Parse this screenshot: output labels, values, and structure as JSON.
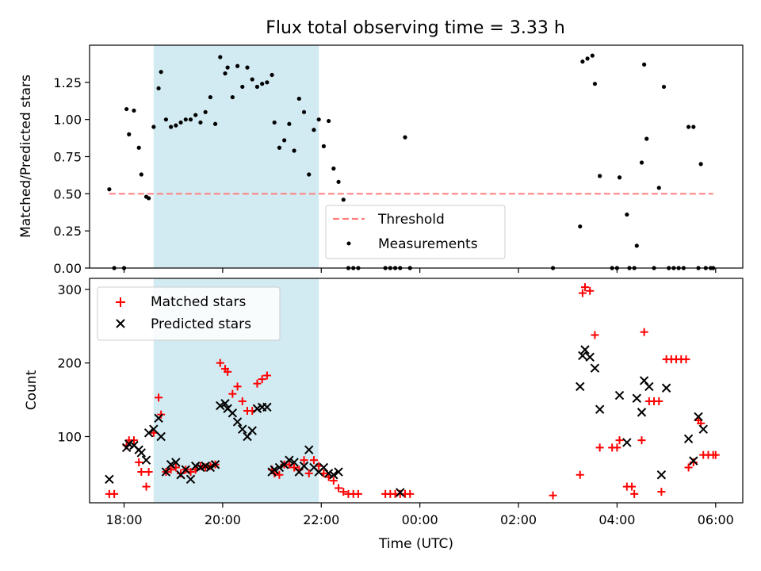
{
  "title": "Flux total observing time = 3.33 h",
  "chart_data": [
    {
      "type": "scatter",
      "ylabel": "Matched/Predicted stars",
      "xlim": [
        17.3,
        30.55
      ],
      "ylim": [
        0,
        1.5
      ],
      "yticks": [
        0,
        0.25,
        0.5,
        0.75,
        1.0,
        1.25
      ],
      "ytick_labels": [
        "0.00",
        "0.25",
        "0.50",
        "0.75",
        "1.00",
        "1.25"
      ],
      "highlight_span": [
        18.6,
        21.95
      ],
      "threshold": {
        "label": "Threshold",
        "value": 0.5,
        "x_start": 17.7,
        "x_end": 29.95,
        "color": "#ff7f7f"
      },
      "legend": [
        "Threshold",
        "Measurements"
      ],
      "legend_position": "lower-center",
      "series": [
        {
          "name": "Measurements",
          "color": "#000000",
          "points": [
            [
              17.7,
              0.53
            ],
            [
              17.8,
              0
            ],
            [
              18.0,
              0
            ],
            [
              18.05,
              1.07
            ],
            [
              18.1,
              0.9
            ],
            [
              18.2,
              1.06
            ],
            [
              18.3,
              0.81
            ],
            [
              18.35,
              0.63
            ],
            [
              18.45,
              0.48
            ],
            [
              18.5,
              0.47
            ],
            [
              18.6,
              0.95
            ],
            [
              18.7,
              1.21
            ],
            [
              18.75,
              1.32
            ],
            [
              18.85,
              1.0
            ],
            [
              18.95,
              0.95
            ],
            [
              19.05,
              0.96
            ],
            [
              19.15,
              0.98
            ],
            [
              19.25,
              1.0
            ],
            [
              19.35,
              1.0
            ],
            [
              19.45,
              1.03
            ],
            [
              19.55,
              0.98
            ],
            [
              19.65,
              1.05
            ],
            [
              19.75,
              1.15
            ],
            [
              19.85,
              0.97
            ],
            [
              19.95,
              1.42
            ],
            [
              20.05,
              1.31
            ],
            [
              20.1,
              1.35
            ],
            [
              20.2,
              1.15
            ],
            [
              20.3,
              1.36
            ],
            [
              20.4,
              1.22
            ],
            [
              20.5,
              1.35
            ],
            [
              20.6,
              1.27
            ],
            [
              20.7,
              1.22
            ],
            [
              20.8,
              1.24
            ],
            [
              20.9,
              1.25
            ],
            [
              21.0,
              1.3
            ],
            [
              21.05,
              0.98
            ],
            [
              21.15,
              0.81
            ],
            [
              21.25,
              0.86
            ],
            [
              21.35,
              0.97
            ],
            [
              21.45,
              0.79
            ],
            [
              21.55,
              1.14
            ],
            [
              21.65,
              1.05
            ],
            [
              21.75,
              0.63
            ],
            [
              21.85,
              0.93
            ],
            [
              21.95,
              1.0
            ],
            [
              22.05,
              0.82
            ],
            [
              22.15,
              0.99
            ],
            [
              22.25,
              0.67
            ],
            [
              22.35,
              0.58
            ],
            [
              22.45,
              0.46
            ],
            [
              22.55,
              0
            ],
            [
              22.65,
              0
            ],
            [
              22.75,
              0
            ],
            [
              23.3,
              0
            ],
            [
              23.4,
              0
            ],
            [
              23.5,
              0
            ],
            [
              23.6,
              0
            ],
            [
              23.7,
              0.88
            ],
            [
              23.8,
              0
            ],
            [
              26.7,
              0
            ],
            [
              27.25,
              0.28
            ],
            [
              27.3,
              1.39
            ],
            [
              27.4,
              1.41
            ],
            [
              27.5,
              1.43
            ],
            [
              27.55,
              1.24
            ],
            [
              27.65,
              0.62
            ],
            [
              27.9,
              0
            ],
            [
              28.0,
              0
            ],
            [
              28.05,
              0.61
            ],
            [
              28.2,
              0.36
            ],
            [
              28.25,
              0
            ],
            [
              28.35,
              0
            ],
            [
              28.4,
              0.15
            ],
            [
              28.5,
              0.71
            ],
            [
              28.55,
              1.37
            ],
            [
              28.6,
              0.87
            ],
            [
              28.75,
              0
            ],
            [
              28.85,
              0.54
            ],
            [
              28.95,
              1.22
            ],
            [
              29.05,
              0
            ],
            [
              29.15,
              0
            ],
            [
              29.25,
              0
            ],
            [
              29.35,
              0
            ],
            [
              29.45,
              0.95
            ],
            [
              29.55,
              0.95
            ],
            [
              29.65,
              0
            ],
            [
              29.7,
              0.7
            ],
            [
              29.8,
              0
            ],
            [
              29.9,
              0
            ],
            [
              29.95,
              0
            ]
          ]
        }
      ]
    },
    {
      "type": "scatter",
      "ylabel": "Count",
      "xlabel": "Time (UTC)",
      "xlim": [
        17.3,
        30.55
      ],
      "ylim": [
        10,
        315
      ],
      "yticks": [
        100,
        200,
        300
      ],
      "ytick_labels": [
        "100",
        "200",
        "300"
      ],
      "xticks": [
        18,
        20,
        22,
        24,
        26,
        28,
        30
      ],
      "xtick_labels": [
        "18:00",
        "20:00",
        "22:00",
        "00:00",
        "02:00",
        "04:00",
        "06:00"
      ],
      "highlight_span": [
        18.6,
        21.95
      ],
      "legend": [
        "Matched stars",
        "Predicted stars"
      ],
      "legend_position": "top-left",
      "series": [
        {
          "name": "Matched stars",
          "marker": "+",
          "color": "#ff0000",
          "points": [
            [
              17.7,
              22
            ],
            [
              17.8,
              22
            ],
            [
              18.05,
              88
            ],
            [
              18.1,
              95
            ],
            [
              18.2,
              95
            ],
            [
              18.3,
              65
            ],
            [
              18.35,
              52
            ],
            [
              18.45,
              32
            ],
            [
              18.5,
              52
            ],
            [
              18.6,
              105
            ],
            [
              18.7,
              153
            ],
            [
              18.75,
              130
            ],
            [
              18.85,
              52
            ],
            [
              18.95,
              55
            ],
            [
              19.05,
              58
            ],
            [
              19.15,
              50
            ],
            [
              19.25,
              55
            ],
            [
              19.35,
              52
            ],
            [
              19.45,
              55
            ],
            [
              19.55,
              60
            ],
            [
              19.65,
              58
            ],
            [
              19.75,
              60
            ],
            [
              19.85,
              62
            ],
            [
              19.95,
              200
            ],
            [
              20.05,
              192
            ],
            [
              20.1,
              188
            ],
            [
              20.2,
              158
            ],
            [
              20.3,
              168
            ],
            [
              20.4,
              148
            ],
            [
              20.5,
              135
            ],
            [
              20.6,
              135
            ],
            [
              20.7,
              172
            ],
            [
              20.8,
              178
            ],
            [
              20.9,
              183
            ],
            [
              21.0,
              55
            ],
            [
              21.05,
              50
            ],
            [
              21.15,
              48
            ],
            [
              21.25,
              62
            ],
            [
              21.35,
              62
            ],
            [
              21.45,
              58
            ],
            [
              21.55,
              55
            ],
            [
              21.65,
              68
            ],
            [
              21.75,
              50
            ],
            [
              21.85,
              68
            ],
            [
              21.95,
              60
            ],
            [
              22.05,
              50
            ],
            [
              22.15,
              45
            ],
            [
              22.25,
              40
            ],
            [
              22.35,
              30
            ],
            [
              22.45,
              25
            ],
            [
              22.55,
              22
            ],
            [
              22.65,
              22
            ],
            [
              22.75,
              22
            ],
            [
              23.3,
              22
            ],
            [
              23.4,
              22
            ],
            [
              23.5,
              22
            ],
            [
              23.6,
              22
            ],
            [
              23.7,
              22
            ],
            [
              23.8,
              22
            ],
            [
              26.7,
              20
            ],
            [
              27.25,
              48
            ],
            [
              27.3,
              295
            ],
            [
              27.35,
              303
            ],
            [
              27.45,
              298
            ],
            [
              27.55,
              238
            ],
            [
              27.65,
              85
            ],
            [
              27.9,
              85
            ],
            [
              28.0,
              85
            ],
            [
              28.05,
              95
            ],
            [
              28.2,
              32
            ],
            [
              28.3,
              32
            ],
            [
              28.35,
              22
            ],
            [
              28.5,
              95
            ],
            [
              28.55,
              242
            ],
            [
              28.65,
              148
            ],
            [
              28.75,
              148
            ],
            [
              28.85,
              148
            ],
            [
              28.9,
              25
            ],
            [
              29.0,
              205
            ],
            [
              29.1,
              205
            ],
            [
              29.2,
              205
            ],
            [
              29.3,
              205
            ],
            [
              29.4,
              205
            ],
            [
              29.45,
              58
            ],
            [
              29.55,
              65
            ],
            [
              29.65,
              122
            ],
            [
              29.7,
              118
            ],
            [
              29.75,
              75
            ],
            [
              29.85,
              75
            ],
            [
              29.95,
              75
            ],
            [
              30.0,
              75
            ]
          ]
        },
        {
          "name": "Predicted stars",
          "marker": "x",
          "color": "#000000",
          "points": [
            [
              17.7,
              42
            ],
            [
              18.05,
              85
            ],
            [
              18.1,
              90
            ],
            [
              18.2,
              88
            ],
            [
              18.3,
              82
            ],
            [
              18.35,
              78
            ],
            [
              18.45,
              68
            ],
            [
              18.5,
              105
            ],
            [
              18.6,
              110
            ],
            [
              18.7,
              125
            ],
            [
              18.75,
              100
            ],
            [
              18.85,
              52
            ],
            [
              18.95,
              62
            ],
            [
              19.05,
              65
            ],
            [
              19.15,
              48
            ],
            [
              19.25,
              55
            ],
            [
              19.35,
              42
            ],
            [
              19.45,
              60
            ],
            [
              19.55,
              58
            ],
            [
              19.65,
              60
            ],
            [
              19.75,
              58
            ],
            [
              19.85,
              62
            ],
            [
              19.95,
              142
            ],
            [
              20.05,
              145
            ],
            [
              20.1,
              138
            ],
            [
              20.2,
              132
            ],
            [
              20.3,
              120
            ],
            [
              20.4,
              110
            ],
            [
              20.5,
              100
            ],
            [
              20.6,
              108
            ],
            [
              20.7,
              138
            ],
            [
              20.8,
              140
            ],
            [
              20.9,
              140
            ],
            [
              21.0,
              52
            ],
            [
              21.05,
              55
            ],
            [
              21.15,
              58
            ],
            [
              21.25,
              62
            ],
            [
              21.35,
              68
            ],
            [
              21.45,
              65
            ],
            [
              21.55,
              52
            ],
            [
              21.65,
              60
            ],
            [
              21.75,
              82
            ],
            [
              21.85,
              58
            ],
            [
              21.95,
              52
            ],
            [
              22.05,
              58
            ],
            [
              22.15,
              50
            ],
            [
              22.25,
              48
            ],
            [
              22.35,
              52
            ],
            [
              23.6,
              24
            ],
            [
              27.25,
              168
            ],
            [
              27.3,
              210
            ],
            [
              27.35,
              218
            ],
            [
              27.45,
              208
            ],
            [
              27.55,
              193
            ],
            [
              27.65,
              137
            ],
            [
              28.05,
              156
            ],
            [
              28.2,
              92
            ],
            [
              28.4,
              152
            ],
            [
              28.5,
              133
            ],
            [
              28.55,
              176
            ],
            [
              28.65,
              168
            ],
            [
              28.9,
              48
            ],
            [
              29.0,
              166
            ],
            [
              29.45,
              97
            ],
            [
              29.55,
              67
            ],
            [
              29.65,
              127
            ],
            [
              29.75,
              110
            ]
          ]
        }
      ]
    }
  ]
}
